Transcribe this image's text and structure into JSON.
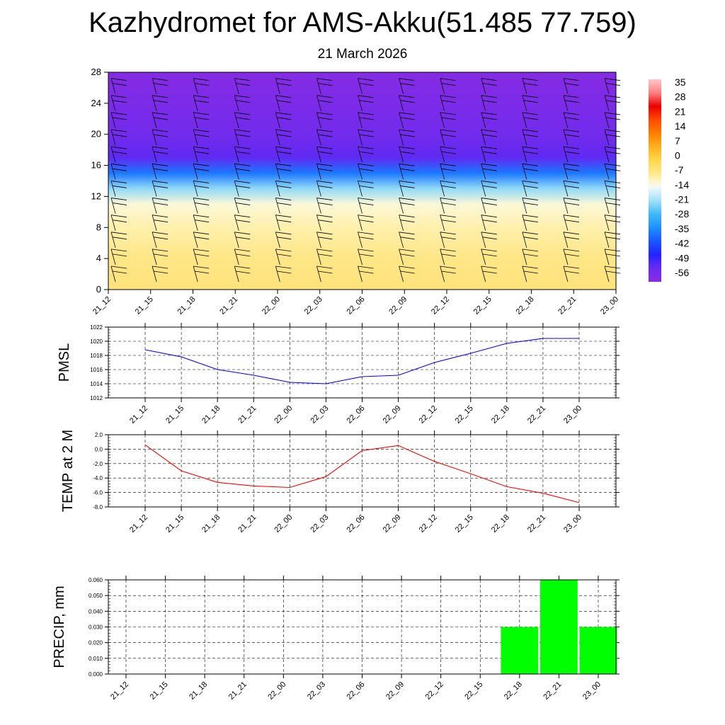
{
  "title": "Kazhydromet for AMS-Akku(51.485 77.759)",
  "subtitle": "21 March 2026",
  "colors": {
    "pmsl_line": "#0000ff",
    "temp_line": "#ff0000",
    "precip_bar": "#00ff00",
    "grid": "#000000",
    "barb": "#000000"
  },
  "chart_data": [
    {
      "type": "heatmap",
      "name": "cross-section",
      "x_tick_labels": [
        "21_12",
        "21_15",
        "21_18",
        "21_21",
        "22_00",
        "22_03",
        "22_06",
        "22_09",
        "22_12",
        "22_15",
        "22_18",
        "22_21",
        "23_00"
      ],
      "y_tick_labels": [
        "0",
        "4",
        "8",
        "12",
        "16",
        "20",
        "24",
        "28"
      ],
      "ylim": [
        0,
        28
      ],
      "colorbar_labels": [
        "35",
        "28",
        "21",
        "14",
        "7",
        "0",
        "-7",
        "-14",
        "-21",
        "-28",
        "-35",
        "-42",
        "-49",
        "-56"
      ],
      "colorbar_range": [
        -63,
        42
      ],
      "field_description_levels": [
        {
          "level": 0,
          "value": -5
        },
        {
          "level": 4,
          "value": -6
        },
        {
          "level": 8,
          "value": -9
        },
        {
          "level": 11,
          "value": -12
        },
        {
          "level": 13,
          "value": -22
        },
        {
          "level": 15,
          "value": -38
        },
        {
          "level": 17,
          "value": -55
        },
        {
          "level": 20,
          "value": -58
        },
        {
          "level": 24,
          "value": -60
        },
        {
          "level": 28,
          "value": -62
        }
      ]
    },
    {
      "type": "line",
      "name": "PMSL",
      "ylabel": "PMSL",
      "x": [
        "21_12",
        "21_15",
        "21_18",
        "21_21",
        "22_00",
        "22_03",
        "22_06",
        "22_09",
        "22_12",
        "22_15",
        "22_18",
        "22_21",
        "23_00"
      ],
      "values": [
        1018.8,
        1017.8,
        1016.0,
        1015.2,
        1014.2,
        1014.0,
        1015.0,
        1015.2,
        1017.0,
        1018.3,
        1019.7,
        1020.4,
        1020.4
      ],
      "ylim": [
        1012,
        1022
      ],
      "y_ticks": [
        "1012",
        "1014",
        "1016",
        "1018",
        "1020",
        "1022"
      ]
    },
    {
      "type": "line",
      "name": "TEMP",
      "ylabel": "TEMP at 2 M",
      "x": [
        "21_12",
        "21_15",
        "21_18",
        "21_21",
        "22_00",
        "22_03",
        "22_06",
        "22_09",
        "22_12",
        "22_15",
        "22_18",
        "22_21",
        "23_00"
      ],
      "values": [
        0.6,
        -3.0,
        -4.6,
        -5.1,
        -5.3,
        -3.8,
        -0.2,
        0.5,
        -1.7,
        -3.4,
        -5.2,
        -6.1,
        -7.4
      ],
      "ylim": [
        -8,
        2
      ],
      "y_ticks": [
        "-8.0",
        "-6.0",
        "-4.0",
        "-2.0",
        "0.0",
        "2.0"
      ]
    },
    {
      "type": "bar",
      "name": "PRECIP",
      "ylabel": "PRECIP, mm",
      "categories": [
        "21_12",
        "21_15",
        "21_18",
        "21_21",
        "22_00",
        "22_03",
        "22_06",
        "22_09",
        "22_12",
        "22_15",
        "22_18",
        "22_21",
        "23_00"
      ],
      "values": [
        0,
        0,
        0,
        0,
        0,
        0,
        0,
        0,
        0,
        0,
        0.03,
        0.06,
        0.03
      ],
      "ylim": [
        0,
        0.06
      ],
      "y_ticks": [
        "0.000",
        "0.010",
        "0.020",
        "0.030",
        "0.040",
        "0.050",
        "0.060"
      ]
    }
  ]
}
